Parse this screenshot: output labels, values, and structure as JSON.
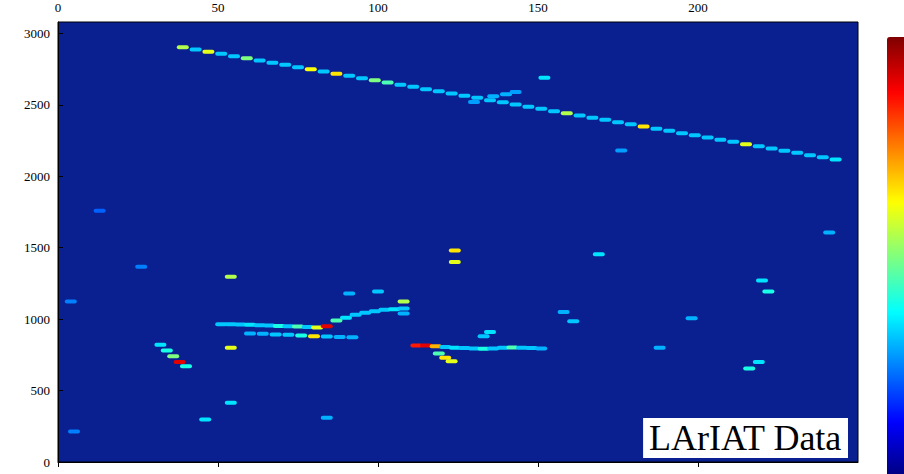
{
  "chart_data": {
    "type": "heatmap",
    "annotation": "LArIAT Data",
    "xlim": [
      0,
      250
    ],
    "xticks": [
      0,
      50,
      100,
      150,
      200
    ],
    "ylim": [
      0,
      3080
    ],
    "yticks": [
      0,
      500,
      1000,
      1500,
      2000,
      2500,
      3000
    ],
    "color_range": [
      0,
      100
    ],
    "cells": [
      [
        39,
        2903,
        55
      ],
      [
        43,
        2888,
        32
      ],
      [
        47,
        2872,
        60
      ],
      [
        51,
        2857,
        32
      ],
      [
        55,
        2841,
        32
      ],
      [
        59,
        2826,
        50
      ],
      [
        63,
        2811,
        32
      ],
      [
        67,
        2795,
        32
      ],
      [
        71,
        2780,
        32
      ],
      [
        75,
        2764,
        32
      ],
      [
        79,
        2749,
        62
      ],
      [
        83,
        2734,
        32
      ],
      [
        87,
        2718,
        65
      ],
      [
        91,
        2703,
        32
      ],
      [
        95,
        2687,
        32
      ],
      [
        99,
        2672,
        50
      ],
      [
        103,
        2657,
        45
      ],
      [
        107,
        2641,
        32
      ],
      [
        111,
        2626,
        32
      ],
      [
        115,
        2610,
        32
      ],
      [
        119,
        2595,
        32
      ],
      [
        123,
        2580,
        32
      ],
      [
        127,
        2564,
        32
      ],
      [
        131,
        2549,
        32
      ],
      [
        135,
        2533,
        32
      ],
      [
        139,
        2518,
        32
      ],
      [
        143,
        2503,
        32
      ],
      [
        147,
        2487,
        32
      ],
      [
        151,
        2472,
        32
      ],
      [
        155,
        2456,
        32
      ],
      [
        159,
        2441,
        55
      ],
      [
        163,
        2426,
        32
      ],
      [
        167,
        2410,
        32
      ],
      [
        171,
        2395,
        32
      ],
      [
        175,
        2379,
        32
      ],
      [
        179,
        2364,
        32
      ],
      [
        183,
        2349,
        65
      ],
      [
        187,
        2333,
        32
      ],
      [
        191,
        2318,
        32
      ],
      [
        195,
        2302,
        32
      ],
      [
        199,
        2287,
        32
      ],
      [
        203,
        2272,
        32
      ],
      [
        207,
        2256,
        32
      ],
      [
        211,
        2241,
        32
      ],
      [
        215,
        2225,
        60
      ],
      [
        219,
        2210,
        32
      ],
      [
        223,
        2195,
        32
      ],
      [
        227,
        2179,
        32
      ],
      [
        231,
        2164,
        32
      ],
      [
        235,
        2148,
        32
      ],
      [
        239,
        2133,
        32
      ],
      [
        243,
        2118,
        35
      ],
      [
        136,
        2560,
        30
      ],
      [
        140,
        2575,
        30
      ],
      [
        143,
        2590,
        28
      ],
      [
        152,
        2690,
        35
      ],
      [
        130,
        2520,
        28
      ],
      [
        51,
        965,
        32
      ],
      [
        54,
        965,
        32
      ],
      [
        57,
        962,
        32
      ],
      [
        60,
        960,
        35
      ],
      [
        63,
        958,
        32
      ],
      [
        66,
        955,
        32
      ],
      [
        69,
        952,
        40
      ],
      [
        72,
        950,
        32
      ],
      [
        75,
        948,
        45
      ],
      [
        78,
        945,
        32
      ],
      [
        81,
        942,
        60
      ],
      [
        84,
        950,
        90
      ],
      [
        87,
        990,
        45
      ],
      [
        90,
        1010,
        35
      ],
      [
        93,
        1030,
        32
      ],
      [
        96,
        1045,
        32
      ],
      [
        99,
        1055,
        32
      ],
      [
        102,
        1065,
        32
      ],
      [
        105,
        1070,
        35
      ],
      [
        108,
        1075,
        32
      ],
      [
        108,
        1040,
        30
      ],
      [
        60,
        900,
        30
      ],
      [
        64,
        897,
        30
      ],
      [
        68,
        893,
        32
      ],
      [
        72,
        890,
        32
      ],
      [
        76,
        886,
        40
      ],
      [
        80,
        880,
        65
      ],
      [
        84,
        878,
        32
      ],
      [
        88,
        875,
        30
      ],
      [
        92,
        873,
        30
      ],
      [
        112,
        815,
        85
      ],
      [
        115,
        815,
        90
      ],
      [
        118,
        810,
        70
      ],
      [
        121,
        805,
        32
      ],
      [
        124,
        800,
        35
      ],
      [
        127,
        798,
        32
      ],
      [
        130,
        795,
        32
      ],
      [
        133,
        792,
        40
      ],
      [
        136,
        795,
        32
      ],
      [
        139,
        800,
        32
      ],
      [
        142,
        802,
        45
      ],
      [
        145,
        800,
        32
      ],
      [
        148,
        798,
        32
      ],
      [
        151,
        795,
        30
      ],
      [
        119,
        760,
        45
      ],
      [
        121,
        730,
        65
      ],
      [
        123,
        705,
        60
      ],
      [
        133,
        880,
        32
      ],
      [
        135,
        910,
        35
      ],
      [
        32,
        820,
        35
      ],
      [
        34,
        780,
        40
      ],
      [
        36,
        740,
        50
      ],
      [
        38,
        700,
        90
      ],
      [
        40,
        670,
        40
      ],
      [
        54,
        800,
        60
      ],
      [
        54,
        1297,
        55
      ],
      [
        124,
        1400,
        60
      ],
      [
        124,
        1480,
        65
      ],
      [
        108,
        1124,
        55
      ],
      [
        222,
        1193,
        40
      ],
      [
        220,
        1270,
        35
      ],
      [
        216,
        655,
        40
      ],
      [
        219,
        700,
        35
      ],
      [
        169,
        1455,
        35
      ],
      [
        54,
        414,
        35
      ],
      [
        46,
        297,
        35
      ],
      [
        91,
        1180,
        30
      ],
      [
        100,
        1193,
        32
      ],
      [
        84,
        310,
        30
      ],
      [
        161,
        986,
        32
      ],
      [
        188,
        800,
        30
      ],
      [
        198,
        1007,
        30
      ],
      [
        241,
        1607,
        30
      ],
      [
        4,
        1124,
        25
      ],
      [
        5,
        214,
        25
      ],
      [
        13,
        1759,
        22
      ],
      [
        26,
        1366,
        25
      ],
      [
        176,
        2180,
        28
      ],
      [
        158,
        1050,
        30
      ]
    ]
  }
}
